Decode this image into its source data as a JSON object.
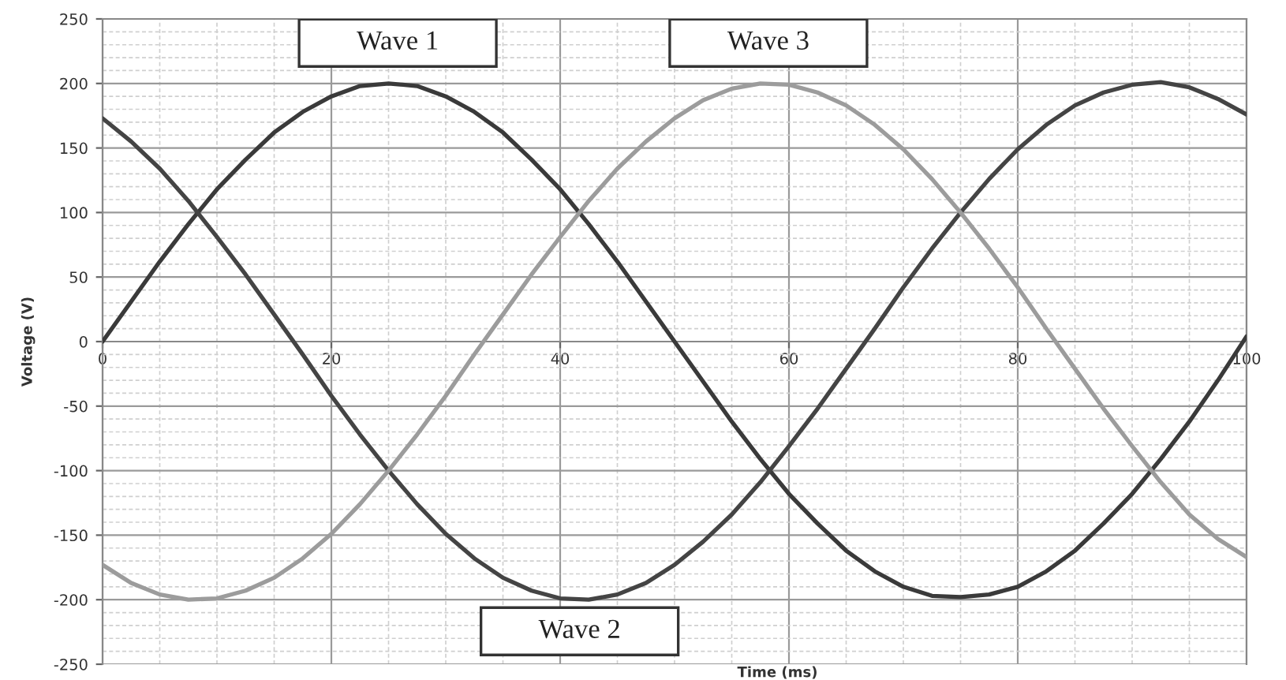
{
  "chart_data": {
    "type": "line",
    "xlabel": "Time (ms)",
    "ylabel": "Voltage (V)",
    "x": [
      0,
      2.5,
      5,
      7.5,
      10,
      12.5,
      15,
      17.5,
      20,
      22.5,
      25,
      27.5,
      30,
      32.5,
      35,
      37.5,
      40,
      42.5,
      45,
      47.5,
      50,
      52.5,
      55,
      57.5,
      60,
      62.5,
      65,
      67.5,
      70,
      72.5,
      75,
      77.5,
      80,
      82.5,
      85,
      87.5,
      90,
      92.5,
      95,
      97.5,
      100
    ],
    "xlim": [
      0,
      100
    ],
    "ylim": [
      -250,
      250
    ],
    "xticks": [
      0,
      {
        "value": 5,
        "label": null
      },
      {
        "value": 10,
        "label": null
      },
      {
        "value": 15,
        "label": null
      },
      20,
      {
        "value": 25,
        "label": null
      },
      {
        "value": 30,
        "label": null
      },
      {
        "value": 35,
        "label": null
      },
      40,
      {
        "value": 45,
        "label": null
      },
      {
        "value": 50,
        "label": null
      },
      {
        "value": 55,
        "label": null
      },
      60,
      {
        "value": 65,
        "label": null
      },
      {
        "value": 70,
        "label": null
      },
      {
        "value": 75,
        "label": null
      },
      80,
      {
        "value": 85,
        "label": null
      },
      {
        "value": 90,
        "label": null
      },
      {
        "value": 95,
        "label": null
      },
      100
    ],
    "yticks": [
      -250,
      {
        "value": -240,
        "label": null
      },
      {
        "value": -230,
        "label": null
      },
      {
        "value": -220,
        "label": null
      },
      {
        "value": -210,
        "label": null
      },
      -200,
      {
        "value": -190,
        "label": null
      },
      {
        "value": -180,
        "label": null
      },
      {
        "value": -170,
        "label": null
      },
      {
        "value": -160,
        "label": null
      },
      -150,
      {
        "value": -140,
        "label": null
      },
      {
        "value": -130,
        "label": null
      },
      {
        "value": -120,
        "label": null
      },
      {
        "value": -110,
        "label": null
      },
      -100,
      {
        "value": -90,
        "label": null
      },
      {
        "value": -80,
        "label": null
      },
      {
        "value": -70,
        "label": null
      },
      {
        "value": -60,
        "label": null
      },
      -50,
      {
        "value": -40,
        "label": null
      },
      {
        "value": -30,
        "label": null
      },
      {
        "value": -20,
        "label": null
      },
      {
        "value": -10,
        "label": null
      },
      0,
      {
        "value": 10,
        "label": null
      },
      {
        "value": 20,
        "label": null
      },
      {
        "value": 30,
        "label": null
      },
      {
        "value": 40,
        "label": null
      },
      50,
      {
        "value": 60,
        "label": null
      },
      {
        "value": 70,
        "label": null
      },
      {
        "value": 80,
        "label": null
      },
      {
        "value": 90,
        "label": null
      },
      100,
      {
        "value": 110,
        "label": null
      },
      {
        "value": 120,
        "label": null
      },
      {
        "value": 130,
        "label": null
      },
      {
        "value": 140,
        "label": null
      },
      150,
      {
        "value": 160,
        "label": null
      },
      {
        "value": 170,
        "label": null
      },
      {
        "value": 180,
        "label": null
      },
      {
        "value": 190,
        "label": null
      },
      200,
      {
        "value": 210,
        "label": null
      },
      {
        "value": 220,
        "label": null
      },
      {
        "value": 230,
        "label": null
      },
      {
        "value": 240,
        "label": null
      },
      250
    ],
    "grid": true,
    "series": [
      {
        "name": "Wave 1",
        "color": "#3a3a3a",
        "values": [
          0,
          31,
          62,
          91,
          118,
          141,
          162,
          178,
          190,
          198,
          200,
          198,
          190,
          178,
          162,
          141,
          118,
          91,
          62,
          31,
          0,
          -31,
          -62,
          -91,
          -118,
          -141,
          -162,
          -178,
          -190,
          -197,
          -198,
          -196,
          -190,
          -178,
          -162,
          -141,
          -118,
          -91,
          -62,
          -30,
          4
        ]
      },
      {
        "name": "Wave 2",
        "color": "#444444",
        "values": [
          173,
          155,
          134,
          109,
          81,
          52,
          21,
          -10,
          -42,
          -72,
          -100,
          -126,
          -149,
          -168,
          -183,
          -193,
          -199,
          -200,
          -196,
          -187,
          -173,
          -155,
          -134,
          -109,
          -81,
          -52,
          -21,
          10,
          42,
          72,
          100,
          126,
          149,
          168,
          183,
          193,
          199,
          201,
          197,
          188,
          176
        ]
      },
      {
        "name": "Wave 3",
        "color": "#9c9c9c",
        "values": [
          -173,
          -187,
          -196,
          -200,
          -199,
          -193,
          -183,
          -168,
          -149,
          -126,
          -100,
          -72,
          -42,
          -10,
          21,
          52,
          81,
          109,
          134,
          155,
          173,
          187,
          196,
          200,
          199,
          193,
          183,
          168,
          149,
          126,
          100,
          72,
          42,
          10,
          -21,
          -52,
          -81,
          -109,
          -134,
          -153,
          -167
        ]
      }
    ]
  }
}
